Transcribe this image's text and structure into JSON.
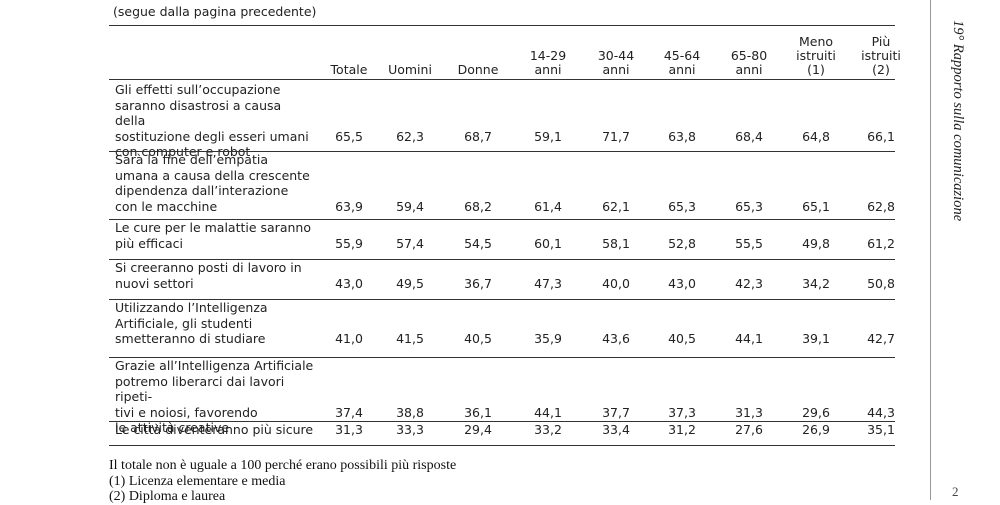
{
  "continuation": "(segue dalla pagina precedente)",
  "side_title": "19° Rapporto sulla comunicazione",
  "page_number": "2",
  "columns": [
    [
      "Totale"
    ],
    [
      "Uomini"
    ],
    [
      "Donne"
    ],
    [
      "14-29",
      "anni"
    ],
    [
      "30-44",
      "anni"
    ],
    [
      "45-64",
      "anni"
    ],
    [
      "65-80",
      "anni"
    ],
    [
      "Meno",
      "istruiti",
      "(1)"
    ],
    [
      "Più",
      "istruiti",
      "(2)"
    ]
  ],
  "rows": [
    {
      "label": [
        "Gli effetti sull’occupazione",
        "saranno disastrosi a causa della",
        "sostituzione degli esseri umani",
        "con computer e robot"
      ],
      "values": [
        "65,5",
        "62,3",
        "68,7",
        "59,1",
        "71,7",
        "63,8",
        "68,4",
        "64,8",
        "66,1"
      ]
    },
    {
      "label": [
        "Sarà la fine dell’empatia",
        "umana a causa della crescente",
        "dipendenza dall’interazione",
        "con le macchine"
      ],
      "values": [
        "63,9",
        "59,4",
        "68,2",
        "61,4",
        "62,1",
        "65,3",
        "65,3",
        "65,1",
        "62,8"
      ]
    },
    {
      "label": [
        "Le cure per le malattie saranno",
        "più efficaci"
      ],
      "values": [
        "55,9",
        "57,4",
        "54,5",
        "60,1",
        "58,1",
        "52,8",
        "55,5",
        "49,8",
        "61,2"
      ]
    },
    {
      "label": [
        "Si creeranno posti di lavoro in",
        "nuovi settori"
      ],
      "values": [
        "43,0",
        "49,5",
        "36,7",
        "47,3",
        "40,0",
        "43,0",
        "42,3",
        "34,2",
        "50,8"
      ]
    },
    {
      "label": [
        "Utilizzando l’Intelligenza",
        "Artificiale, gli studenti",
        "smetteranno di studiare"
      ],
      "values": [
        "41,0",
        "41,5",
        "40,5",
        "35,9",
        "43,6",
        "40,5",
        "44,1",
        "39,1",
        "42,7"
      ]
    },
    {
      "label": [
        "Grazie all’Intelligenza Artificiale",
        "potremo liberarci dai lavori ripeti-",
        "tivi e noiosi, favorendo",
        "le attività creative"
      ],
      "values": [
        "37,4",
        "38,8",
        "36,1",
        "44,1",
        "37,7",
        "37,3",
        "31,3",
        "29,6",
        "44,3"
      ]
    },
    {
      "label": [
        "Le città diventeranno più sicure"
      ],
      "values": [
        "31,3",
        "33,3",
        "29,4",
        "33,2",
        "33,4",
        "31,2",
        "27,6",
        "26,9",
        "35,1"
      ]
    }
  ],
  "notes": [
    "Il totale non è uguale a 100 perché erano possibili più risposte",
    "(1) Licenza elementare e media",
    "(2) Diploma e laurea"
  ]
}
